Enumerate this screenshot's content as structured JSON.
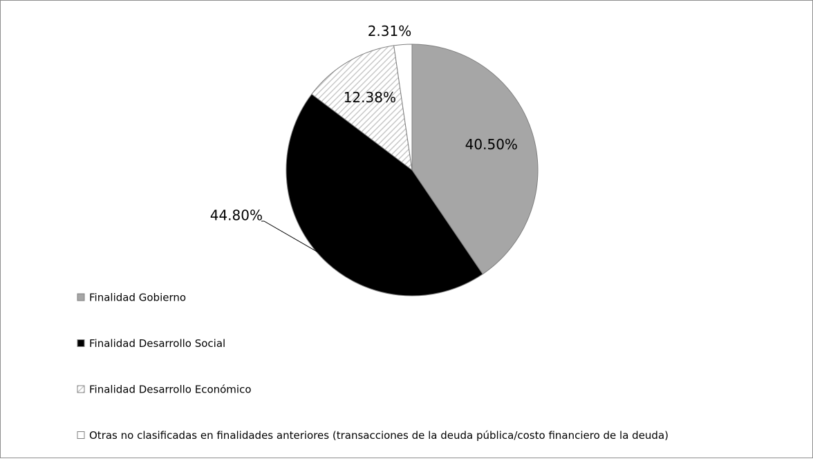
{
  "chart_data": {
    "type": "pie",
    "categories": [
      "Finalidad Gobierno",
      "Finalidad Desarrollo Social",
      "Finalidad Desarrollo Económico",
      "Otras no clasificadas en finalidades anteriores (transacciones de la deuda pública/costo financiero de la deuda)"
    ],
    "values": [
      40.5,
      44.8,
      12.38,
      2.31
    ],
    "value_labels": [
      "40.50%",
      "44.80%",
      "12.38%",
      "2.31%"
    ],
    "colors": [
      "#a6a6a6",
      "#000000",
      "#ffffff",
      "#ffffff"
    ],
    "hatched": [
      false,
      false,
      true,
      false
    ],
    "legend": "left"
  }
}
